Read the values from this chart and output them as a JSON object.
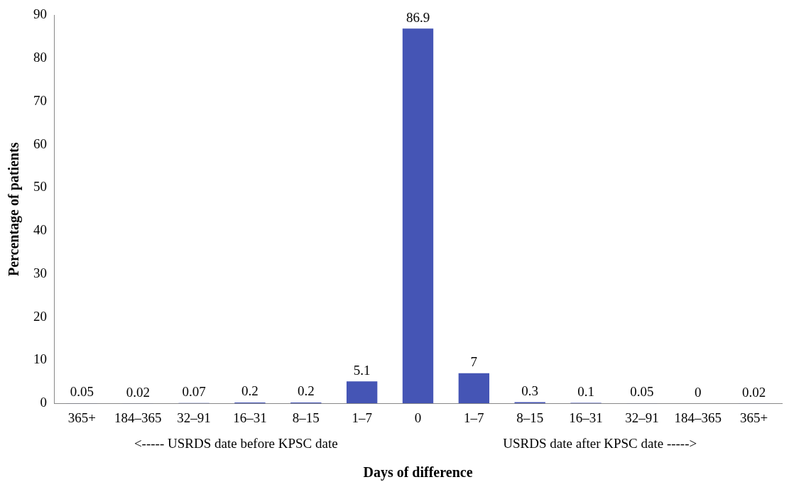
{
  "chart_data": {
    "type": "bar",
    "xlabel": "Days of difference",
    "ylabel": "Percentage of patients",
    "categories": [
      "365+",
      "184–365",
      "32–91",
      "16–31",
      "8–15",
      "1–7",
      "0",
      "1–7",
      "8–15",
      "16–31",
      "32–91",
      "184–365",
      "365+"
    ],
    "values": [
      0.05,
      0.02,
      0.07,
      0.2,
      0.2,
      5.1,
      86.9,
      7,
      0.3,
      0.1,
      0.05,
      0,
      0.02
    ],
    "color": "#4555b5",
    "ylim": [
      0,
      90
    ],
    "yticks": [
      0,
      10,
      20,
      30,
      40,
      50,
      60,
      70,
      80,
      90
    ],
    "grid": false,
    "legend": false,
    "data_labels": true,
    "annotations": [
      "<----- USRDS date before KPSC date",
      "USRDS date after KPSC date ----->"
    ]
  }
}
